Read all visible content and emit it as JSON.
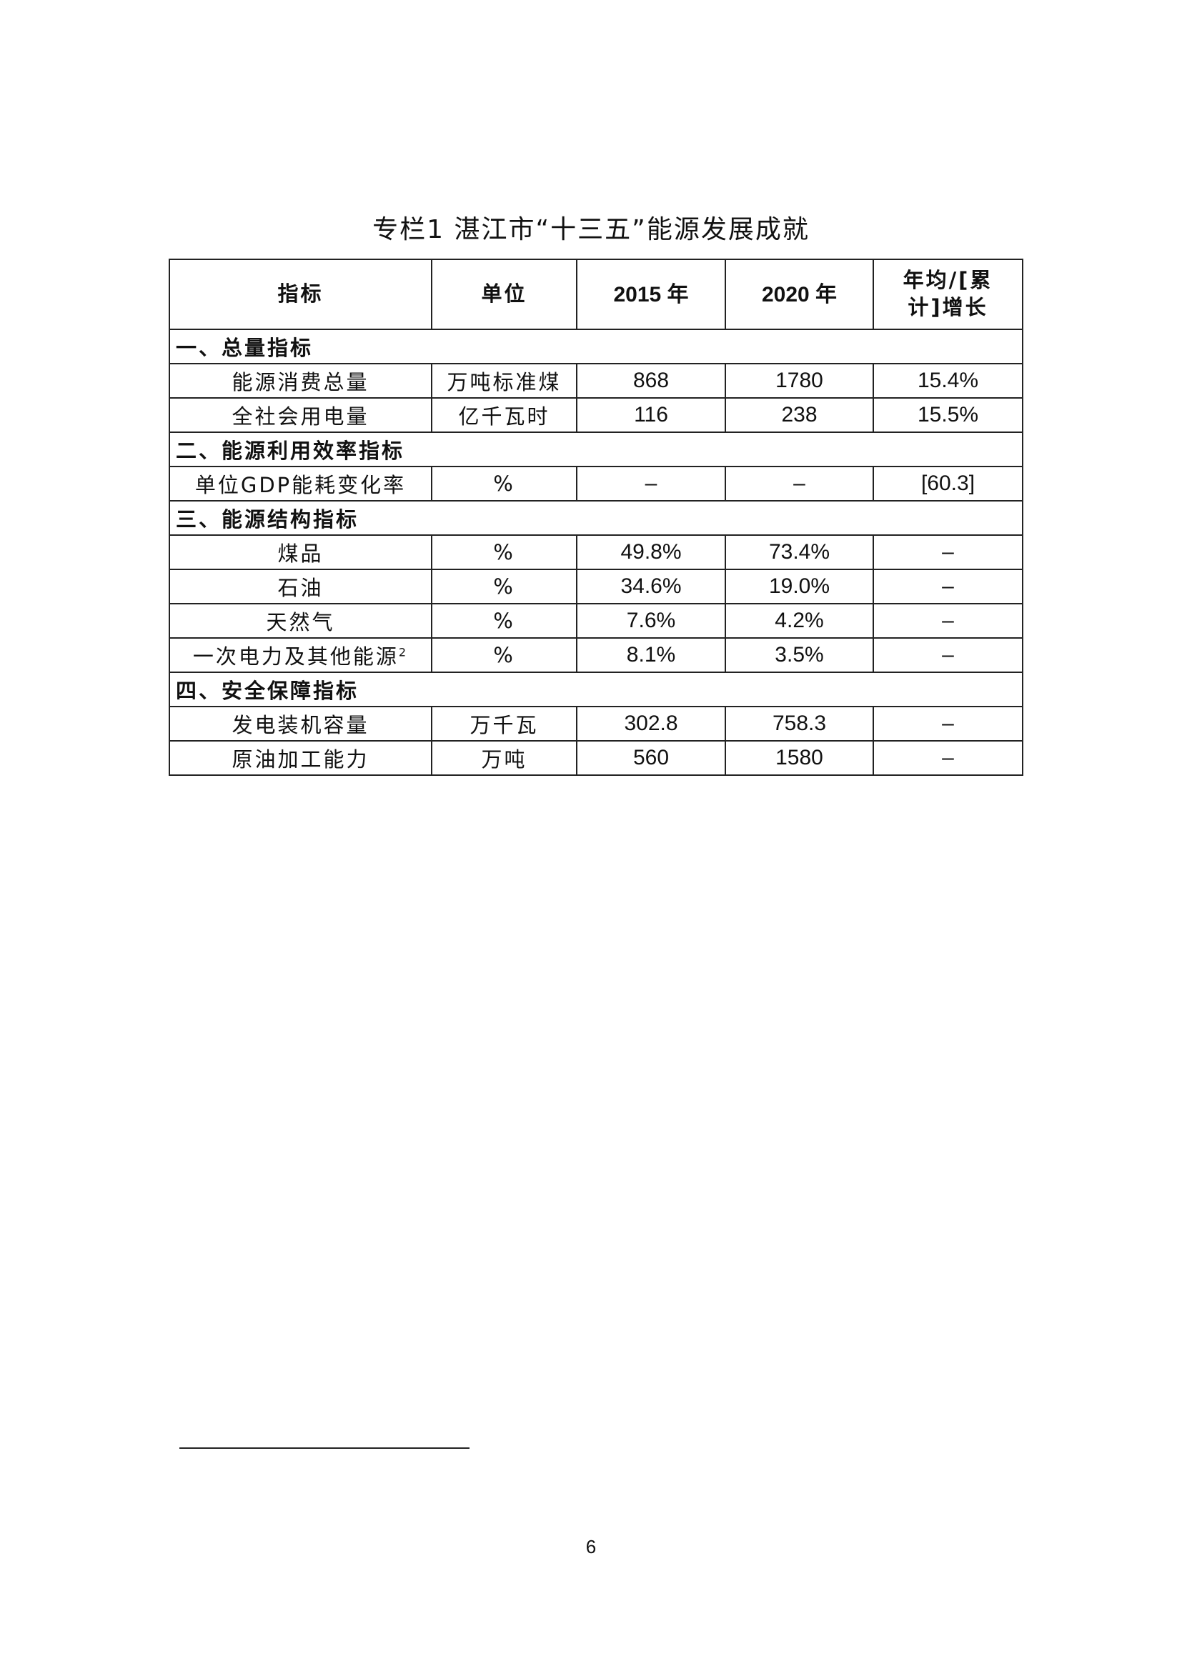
{
  "title": "专栏1 湛江市“十三五”能源发展成就",
  "headers": [
    "指标",
    "单位",
    "2015 年",
    "2020 年",
    "年均/[累计]增长"
  ],
  "sections": [
    {
      "label": "一、总量指标",
      "rows": [
        {
          "name": "能源消费总量",
          "unit": "万吨标准煤",
          "y2015": "868",
          "y2020": "1780",
          "growth": "15.4%"
        },
        {
          "name": "全社会用电量",
          "unit": "亿千瓦时",
          "y2015": "116",
          "y2020": "238",
          "growth": "15.5%"
        }
      ]
    },
    {
      "label": "二、能源利用效率指标",
      "rows": [
        {
          "name": "单位GDP能耗变化率",
          "unit": "%",
          "y2015": "–",
          "y2020": "–",
          "growth": "[60.3]"
        }
      ]
    },
    {
      "label": "三、能源结构指标",
      "rows": [
        {
          "name": "煤品",
          "unit": "%",
          "y2015": "49.8%",
          "y2020": "73.4%",
          "growth": "–"
        },
        {
          "name": "石油",
          "unit": "%",
          "y2015": "34.6%",
          "y2020": "19.0%",
          "growth": "–"
        },
        {
          "name": "天然气",
          "unit": "%",
          "y2015": "7.6%",
          "y2020": "4.2%",
          "growth": "–"
        },
        {
          "name": "一次电力及其他能源",
          "sup": "2",
          "unit": "%",
          "y2015": "8.1%",
          "y2020": "3.5%",
          "growth": "–"
        }
      ]
    },
    {
      "label": "四、安全保障指标",
      "rows": [
        {
          "name": "发电装机容量",
          "unit": "万千瓦",
          "y2015": "302.8",
          "y2020": "758.3",
          "growth": "–"
        },
        {
          "name": "原油加工能力",
          "unit": "万吨",
          "y2015": "560",
          "y2020": "1580",
          "growth": "–"
        }
      ]
    }
  ],
  "page_number": "6"
}
